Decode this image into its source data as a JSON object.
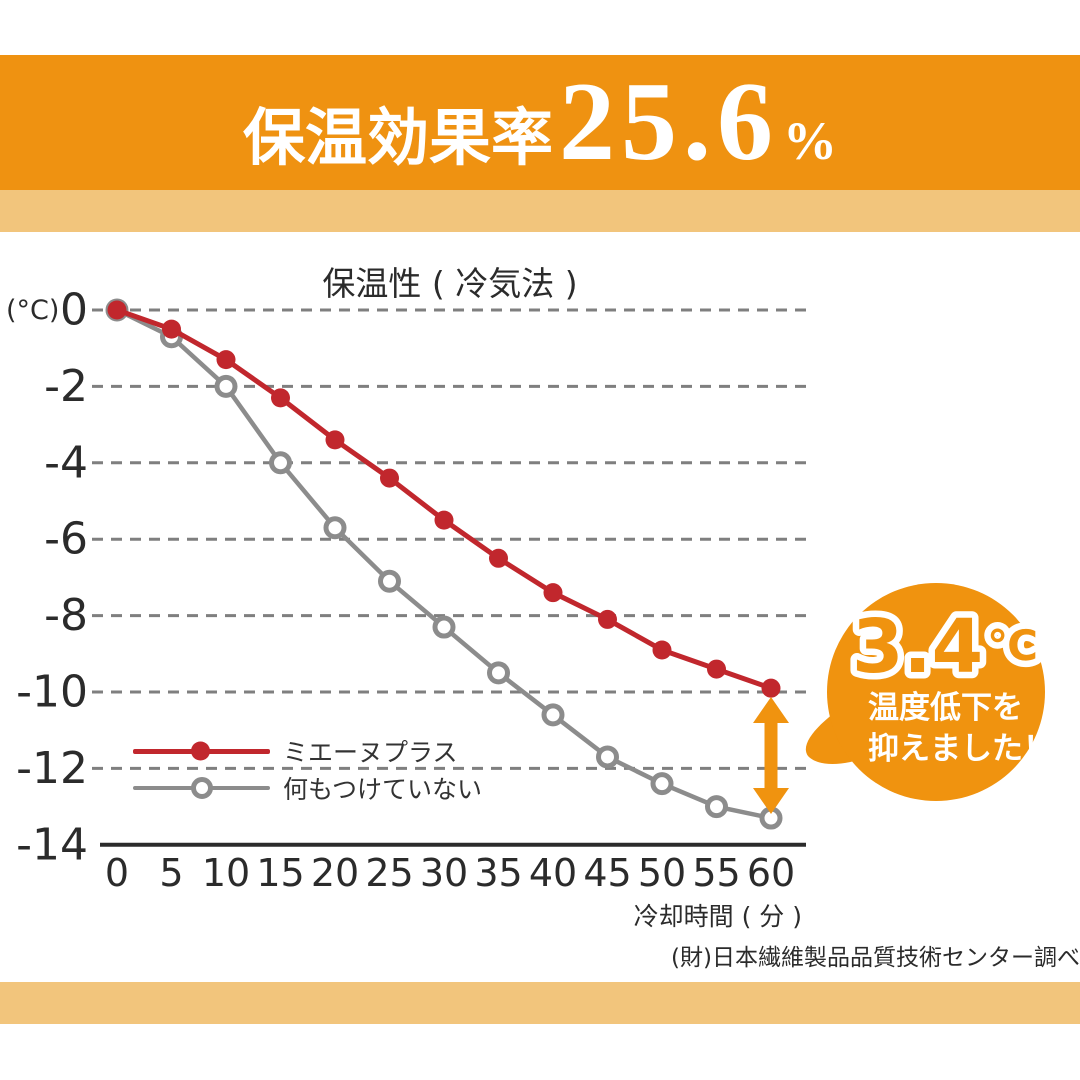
{
  "header": {
    "title": "保温効果率",
    "value": "25.6",
    "unit": "%"
  },
  "chart_data": {
    "type": "line",
    "title": "保温性 ( 冷気法 )",
    "y_unit_label": "(°C)",
    "xlabel": "冷却時間 ( 分 )",
    "x": [
      0,
      5,
      10,
      15,
      20,
      25,
      30,
      35,
      40,
      45,
      50,
      55,
      60
    ],
    "yticks": [
      0,
      -2,
      -4,
      -6,
      -8,
      -10,
      -12,
      -14
    ],
    "ylim": [
      0,
      -14
    ],
    "grid": "horizontal-dashed",
    "grid_color": "#7f7f7f",
    "axis_color": "#2b2b2b",
    "legend_position": "inside-bottom-left",
    "series": [
      {
        "name": "ミエーヌプラス",
        "color": "#c1272d",
        "marker": "filled",
        "values": [
          0,
          -0.5,
          -1.3,
          -2.3,
          -3.4,
          -4.4,
          -5.5,
          -6.5,
          -7.4,
          -8.1,
          -8.9,
          -9.4,
          -9.9
        ]
      },
      {
        "name": "何もつけていない",
        "color": "#8c8c8c",
        "marker": "open",
        "values": [
          0,
          -0.7,
          -2.0,
          -4.0,
          -5.7,
          -7.1,
          -8.3,
          -9.5,
          -10.6,
          -11.7,
          -12.4,
          -13.0,
          -13.3
        ]
      }
    ]
  },
  "callout": {
    "value": "3.4",
    "unit": "℃",
    "line1": "温度低下を",
    "line2": "抑えました！",
    "color": "#f0930f"
  },
  "source": "(財)日本繊維製品品質技術センター調べ",
  "colors": {
    "header_band": "#ef9211",
    "accent_band": "#f2c57c",
    "background": "#ffffff"
  }
}
